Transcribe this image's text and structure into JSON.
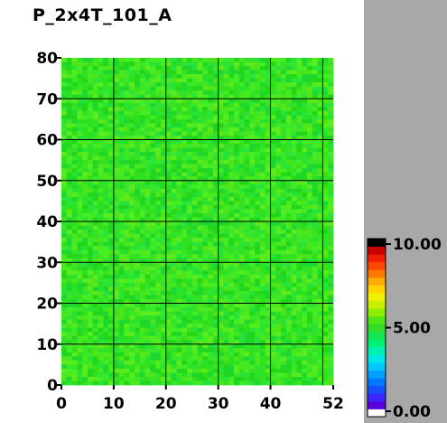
{
  "title": "P_2x4T_101_A",
  "colors": {
    "plot_background": "#ffffff",
    "side_panel": "#a8a8a8",
    "grid_line": "#000000",
    "dominant_cell": "#33dd22"
  },
  "chart_data": {
    "type": "heatmap",
    "title": "P_2x4T_101_A",
    "xlabel": "",
    "ylabel": "",
    "x_range": [
      0,
      52
    ],
    "y_range": [
      0,
      80
    ],
    "x_ticks": [
      0,
      10,
      20,
      30,
      40,
      52
    ],
    "y_ticks": [
      0,
      10,
      20,
      30,
      40,
      50,
      60,
      70,
      80
    ],
    "x_gridlines": [
      10,
      20,
      30,
      40,
      50
    ],
    "y_gridlines": [
      10,
      20,
      30,
      40,
      50,
      60,
      70
    ],
    "grid": true,
    "cells": {
      "columns": 52,
      "rows": 80,
      "approx_value": 5.6,
      "value_range": [
        4.9,
        6.3
      ]
    },
    "colorbar": {
      "min": 0.0,
      "max": 10.0,
      "labels": [
        "10.00",
        "5.00",
        "0.00"
      ],
      "label_values": [
        10.0,
        5.0,
        0.0
      ],
      "colors": [
        "#ffffff",
        "#5a00d8",
        "#3c28ff",
        "#1450ff",
        "#0078ff",
        "#00a0ff",
        "#00c8ff",
        "#00e6e6",
        "#00f0b4",
        "#00f078",
        "#14e650",
        "#32dc28",
        "#50e614",
        "#8cf000",
        "#c8f000",
        "#f0f000",
        "#ffd200",
        "#ffaa00",
        "#ff7800",
        "#ff4600",
        "#f01e00",
        "#c80000",
        "#000000"
      ]
    }
  }
}
